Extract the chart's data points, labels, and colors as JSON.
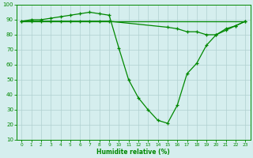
{
  "xlabel": "Humidite relative (%)",
  "xlim": [
    -0.5,
    23.5
  ],
  "ylim": [
    10,
    100
  ],
  "yticks": [
    10,
    20,
    30,
    40,
    50,
    60,
    70,
    80,
    90,
    100
  ],
  "xticks": [
    0,
    1,
    2,
    3,
    4,
    5,
    6,
    7,
    8,
    9,
    10,
    11,
    12,
    13,
    14,
    15,
    16,
    17,
    18,
    19,
    20,
    21,
    22,
    23
  ],
  "background_color": "#d5eeee",
  "grid_color": "#b0d0d0",
  "line_color": "#008800",
  "curve1_x": [
    0,
    1,
    2,
    3,
    4,
    5,
    6,
    7,
    8,
    9,
    10,
    11,
    12,
    13,
    14,
    15,
    16,
    17,
    18,
    19,
    20,
    21,
    22,
    23
  ],
  "curve1_y": [
    89,
    90,
    90,
    91,
    92,
    93,
    94,
    95,
    94,
    93,
    71,
    50,
    38,
    30,
    23,
    21,
    33,
    54,
    61,
    73,
    80,
    84,
    86,
    89
  ],
  "curve2_x": [
    0,
    1,
    2,
    3,
    4,
    5,
    6,
    7,
    8,
    9,
    15,
    16,
    17,
    18,
    19,
    20,
    21,
    22,
    23
  ],
  "curve2_y": [
    89,
    89,
    89,
    89,
    89,
    89,
    89,
    89,
    89,
    89,
    85,
    84,
    82,
    82,
    80,
    80,
    83,
    86,
    89
  ],
  "curve3_x": [
    0,
    23
  ],
  "curve3_y": [
    89,
    89
  ]
}
